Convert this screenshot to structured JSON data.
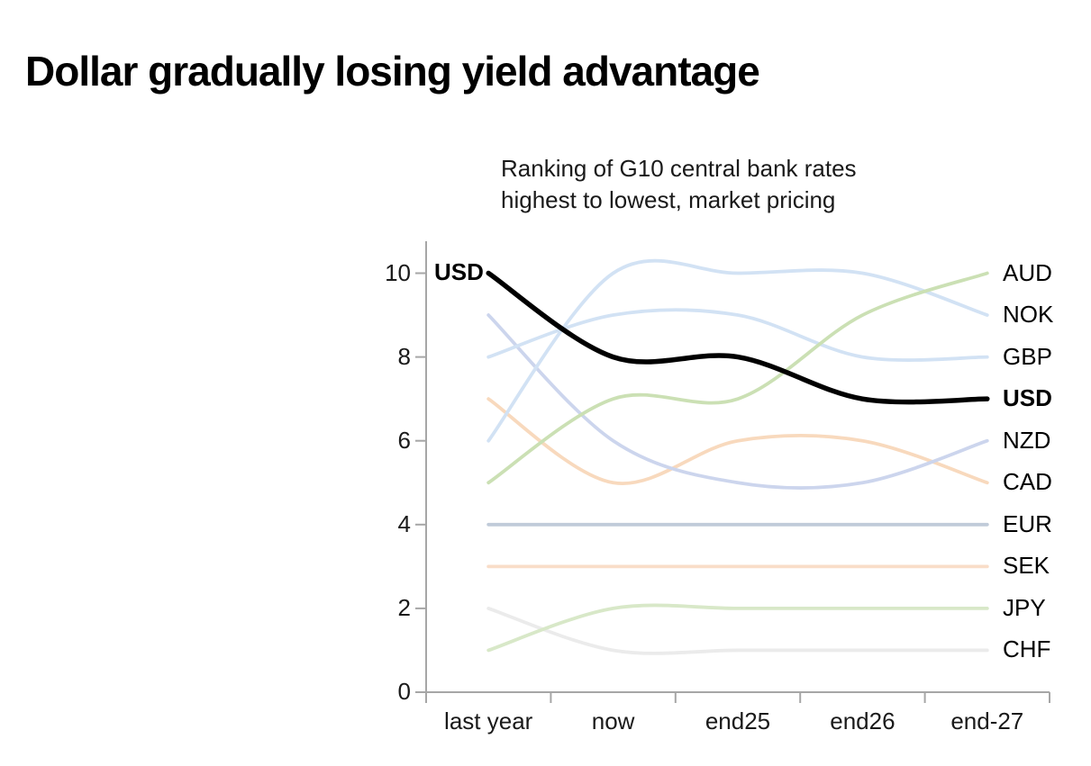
{
  "title": "Dollar gradually losing yield advantage",
  "subtitle": {
    "line1": "Ranking of G10 central bank rates",
    "line2": "highest to lowest, market pricing"
  },
  "chart_data": {
    "type": "line",
    "title": "Dollar gradually losing yield advantage",
    "subtitle": "Ranking of G10 central bank rates highest to lowest, market pricing",
    "categories": [
      "last year",
      "now",
      "end25",
      "end26",
      "end-27"
    ],
    "xlabel": "",
    "ylabel": "",
    "ylim": [
      0,
      10
    ],
    "yticks": [
      0,
      2,
      4,
      6,
      8,
      10
    ],
    "grid": false,
    "smoothing": "spline with overshoot",
    "legend_position": "direct labels at right line ends; USD also labeled at left start",
    "axis_color": "#a6a6a6",
    "series": [
      {
        "name": "AUD",
        "values": [
          5,
          7,
          7,
          9,
          10
        ],
        "color": "#cbe0b4",
        "emphasis": false
      },
      {
        "name": "NOK",
        "values": [
          6,
          10,
          10,
          10,
          9
        ],
        "color": "#d2e2f4",
        "emphasis": false
      },
      {
        "name": "GBP",
        "values": [
          8,
          9,
          9,
          8,
          8
        ],
        "color": "#d2e2f4",
        "emphasis": false
      },
      {
        "name": "USD",
        "values": [
          10,
          8,
          8,
          7,
          7
        ],
        "color": "#000000",
        "emphasis": true,
        "start_label": "USD",
        "end_label": "USD"
      },
      {
        "name": "NZD",
        "values": [
          9,
          6,
          5,
          5,
          6
        ],
        "color": "#ccd5ed",
        "emphasis": false
      },
      {
        "name": "CAD",
        "values": [
          7,
          5,
          6,
          6,
          5
        ],
        "color": "#f8d9bd",
        "emphasis": false
      },
      {
        "name": "EUR",
        "values": [
          4,
          4,
          4,
          4,
          4
        ],
        "color": "#c0cbd9",
        "emphasis": false
      },
      {
        "name": "SEK",
        "values": [
          3,
          3,
          3,
          3,
          3
        ],
        "color": "#f9ddc8",
        "emphasis": false
      },
      {
        "name": "JPY",
        "values": [
          1,
          2,
          2,
          2,
          2
        ],
        "color": "#d8e8c8",
        "emphasis": false
      },
      {
        "name": "CHF",
        "values": [
          2,
          1,
          1,
          1,
          1
        ],
        "color": "#ebebeb",
        "emphasis": false
      }
    ]
  }
}
